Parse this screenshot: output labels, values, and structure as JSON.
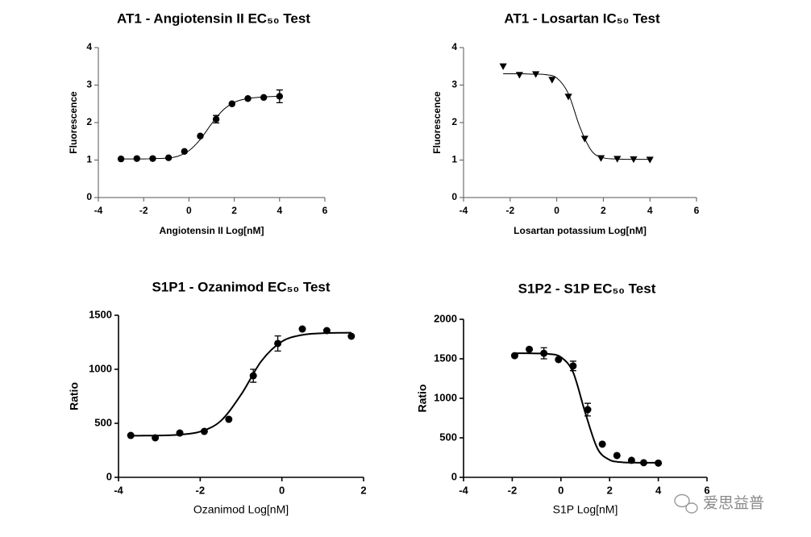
{
  "chart_data": [
    {
      "type": "scatter",
      "title": "AT1 - Angiotensin II EC₅₀ Test",
      "xlabel": "Angiotensin II Log[nM]",
      "ylabel": "Fluorescence",
      "xlim": [
        -4,
        6
      ],
      "xticks": [
        -4,
        -2,
        0,
        2,
        4,
        6
      ],
      "ylim": [
        0,
        4
      ],
      "yticks": [
        0,
        1,
        2,
        3,
        4
      ],
      "marker": "circle",
      "color": "#000000",
      "x": [
        -3,
        -2.3,
        -1.6,
        -0.9,
        -0.2,
        0.5,
        1.2,
        1.9,
        2.6,
        3.3,
        4.0
      ],
      "values": [
        1.03,
        1.04,
        1.04,
        1.06,
        1.23,
        1.64,
        2.09,
        2.5,
        2.64,
        2.67,
        2.7
      ],
      "errors": [
        null,
        null,
        null,
        null,
        null,
        null,
        0.1,
        null,
        null,
        null,
        0.17
      ],
      "fit": {
        "x": [
          -3,
          -2.5,
          -2,
          -1.5,
          -1,
          -0.5,
          0,
          0.5,
          1,
          1.5,
          2,
          2.5,
          3,
          3.5,
          4
        ],
        "values": [
          1.03,
          1.03,
          1.03,
          1.04,
          1.05,
          1.1,
          1.25,
          1.55,
          1.97,
          2.33,
          2.54,
          2.63,
          2.67,
          2.69,
          2.7
        ]
      }
    },
    {
      "type": "scatter",
      "title": "AT1 - Losartan IC₅₀ Test",
      "xlabel": "Losartan potassium Log[nM]",
      "ylabel": "Fluorescence",
      "xlim": [
        -4,
        6
      ],
      "xticks": [
        -4,
        -2,
        0,
        2,
        4,
        6
      ],
      "ylim": [
        0,
        4
      ],
      "yticks": [
        0,
        1,
        2,
        3,
        4
      ],
      "marker": "triangle-down",
      "color": "#000000",
      "x": [
        -2.3,
        -1.6,
        -0.9,
        -0.2,
        0.5,
        1.2,
        1.9,
        2.6,
        3.3,
        4.0
      ],
      "values": [
        3.5,
        3.27,
        3.29,
        3.14,
        2.69,
        1.57,
        1.05,
        1.03,
        1.02,
        1.01
      ],
      "errors": [
        null,
        null,
        null,
        null,
        null,
        null,
        null,
        null,
        null,
        null
      ],
      "fit": {
        "x": [
          -2.3,
          -2,
          -1.5,
          -1,
          -0.5,
          0,
          0.5,
          1,
          1.5,
          2,
          2.5,
          3,
          3.5,
          4
        ],
        "values": [
          3.3,
          3.3,
          3.3,
          3.29,
          3.28,
          3.19,
          2.77,
          1.87,
          1.24,
          1.06,
          1.03,
          1.02,
          1.02,
          1.02
        ]
      }
    },
    {
      "type": "scatter",
      "title": "S1P1 - Ozanimod EC₅₀ Test",
      "xlabel": "Ozanimod Log[nM]",
      "ylabel": "Ratio",
      "xlim": [
        -4,
        2
      ],
      "xticks": [
        -4,
        -2,
        0,
        2
      ],
      "ylim": [
        0,
        1500
      ],
      "yticks": [
        0,
        500,
        1000,
        1500
      ],
      "marker": "circle",
      "color": "#000000",
      "x": [
        -3.7,
        -3.1,
        -2.5,
        -1.9,
        -1.3,
        -0.7,
        -0.1,
        0.5,
        1.1,
        1.7
      ],
      "values": [
        388,
        366,
        410,
        425,
        537,
        940,
        1239,
        1373,
        1358,
        1306
      ],
      "errors": [
        null,
        null,
        null,
        null,
        null,
        60,
        70,
        null,
        null,
        null
      ],
      "fit": {
        "x": [
          -3.7,
          -3.5,
          -3,
          -2.5,
          -2,
          -1.5,
          -1,
          -0.5,
          0,
          0.5,
          1,
          1.5,
          1.7
        ],
        "values": [
          385,
          385.5,
          387.5,
          395,
          423,
          521,
          765,
          1077,
          1257,
          1318,
          1334,
          1338,
          1339
        ]
      }
    },
    {
      "type": "scatter",
      "title": "S1P2 - S1P EC₅₀ Test",
      "xlabel": "S1P Log[nM]",
      "ylabel": "Ratio",
      "xlim": [
        -4,
        6
      ],
      "xticks": [
        -4,
        -2,
        0,
        2,
        4,
        6
      ],
      "ylim": [
        0,
        2000
      ],
      "yticks": [
        0,
        500,
        1000,
        1500,
        2000
      ],
      "marker": "circle",
      "color": "#000000",
      "x": [
        -1.9,
        -1.3,
        -0.7,
        -0.1,
        0.5,
        1.1,
        1.7,
        2.3,
        2.9,
        3.4,
        4.0
      ],
      "values": [
        1540,
        1620,
        1570,
        1490,
        1410,
        857,
        420,
        276,
        215,
        185,
        180
      ],
      "errors": [
        null,
        null,
        70,
        null,
        60,
        80,
        null,
        null,
        null,
        null,
        null
      ],
      "fit": {
        "x": [
          -1.9,
          -1.5,
          -1,
          -0.5,
          0,
          0.5,
          1,
          1.5,
          2,
          2.5,
          3,
          3.5,
          4
        ],
        "values": [
          1570,
          1570,
          1568,
          1561,
          1521,
          1329,
          817,
          365,
          221,
          191.5,
          186,
          185,
          185
        ]
      }
    }
  ],
  "watermark": "爱思益普"
}
